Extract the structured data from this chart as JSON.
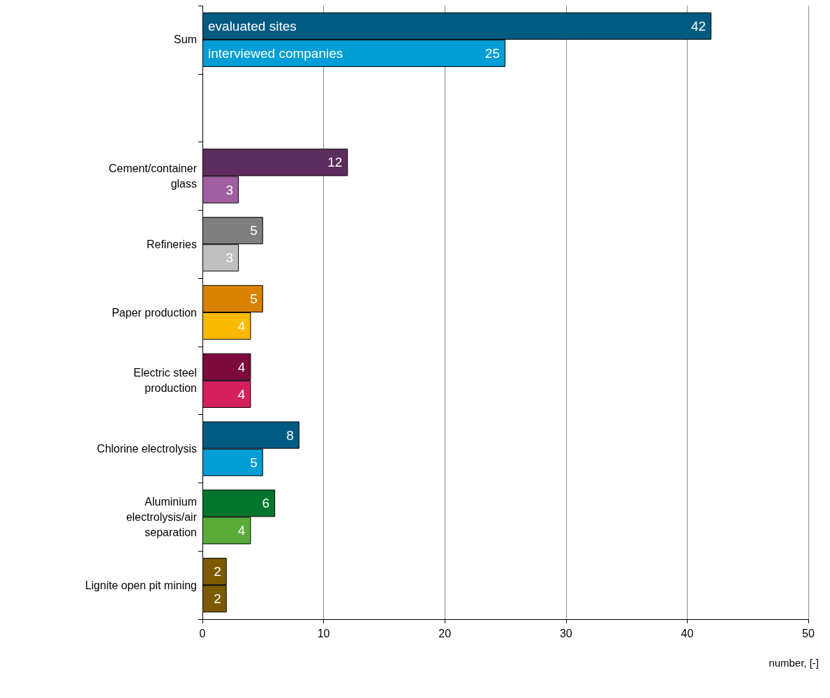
{
  "chart_data": {
    "type": "bar",
    "orientation": "horizontal",
    "xlabel": "number, [-]",
    "categories": [
      "Sum",
      null,
      "Cement/container\nglass",
      "Refineries",
      "Paper production",
      "Electric steel\nproduction",
      "Chlorine electrolysis",
      "Aluminium\nelectrolysis/air\nseparation",
      "Lignite open pit mining"
    ],
    "series": [
      {
        "name": "evaluated sites",
        "values": [
          42,
          null,
          12,
          5,
          5,
          4,
          8,
          6,
          2
        ],
        "colors": [
          "#005b82",
          null,
          "#5e2d5f",
          "#7f7f7f",
          "#d98200",
          "#7d0a3c",
          "#005b82",
          "#00762d",
          "#7b5a00"
        ]
      },
      {
        "name": "interviewed companies",
        "values": [
          25,
          null,
          3,
          3,
          4,
          4,
          5,
          4,
          2
        ],
        "colors": [
          "#009dd6",
          null,
          "#a05fa0",
          "#bfbfbf",
          "#fbb900",
          "#d4215d",
          "#009dd6",
          "#5aac3a",
          "#7b5a00"
        ]
      }
    ],
    "xlim": [
      0,
      50
    ],
    "xticks": [
      0,
      10,
      20,
      30,
      40,
      50
    ],
    "grid": "x",
    "data_labels": true,
    "legend": false
  }
}
